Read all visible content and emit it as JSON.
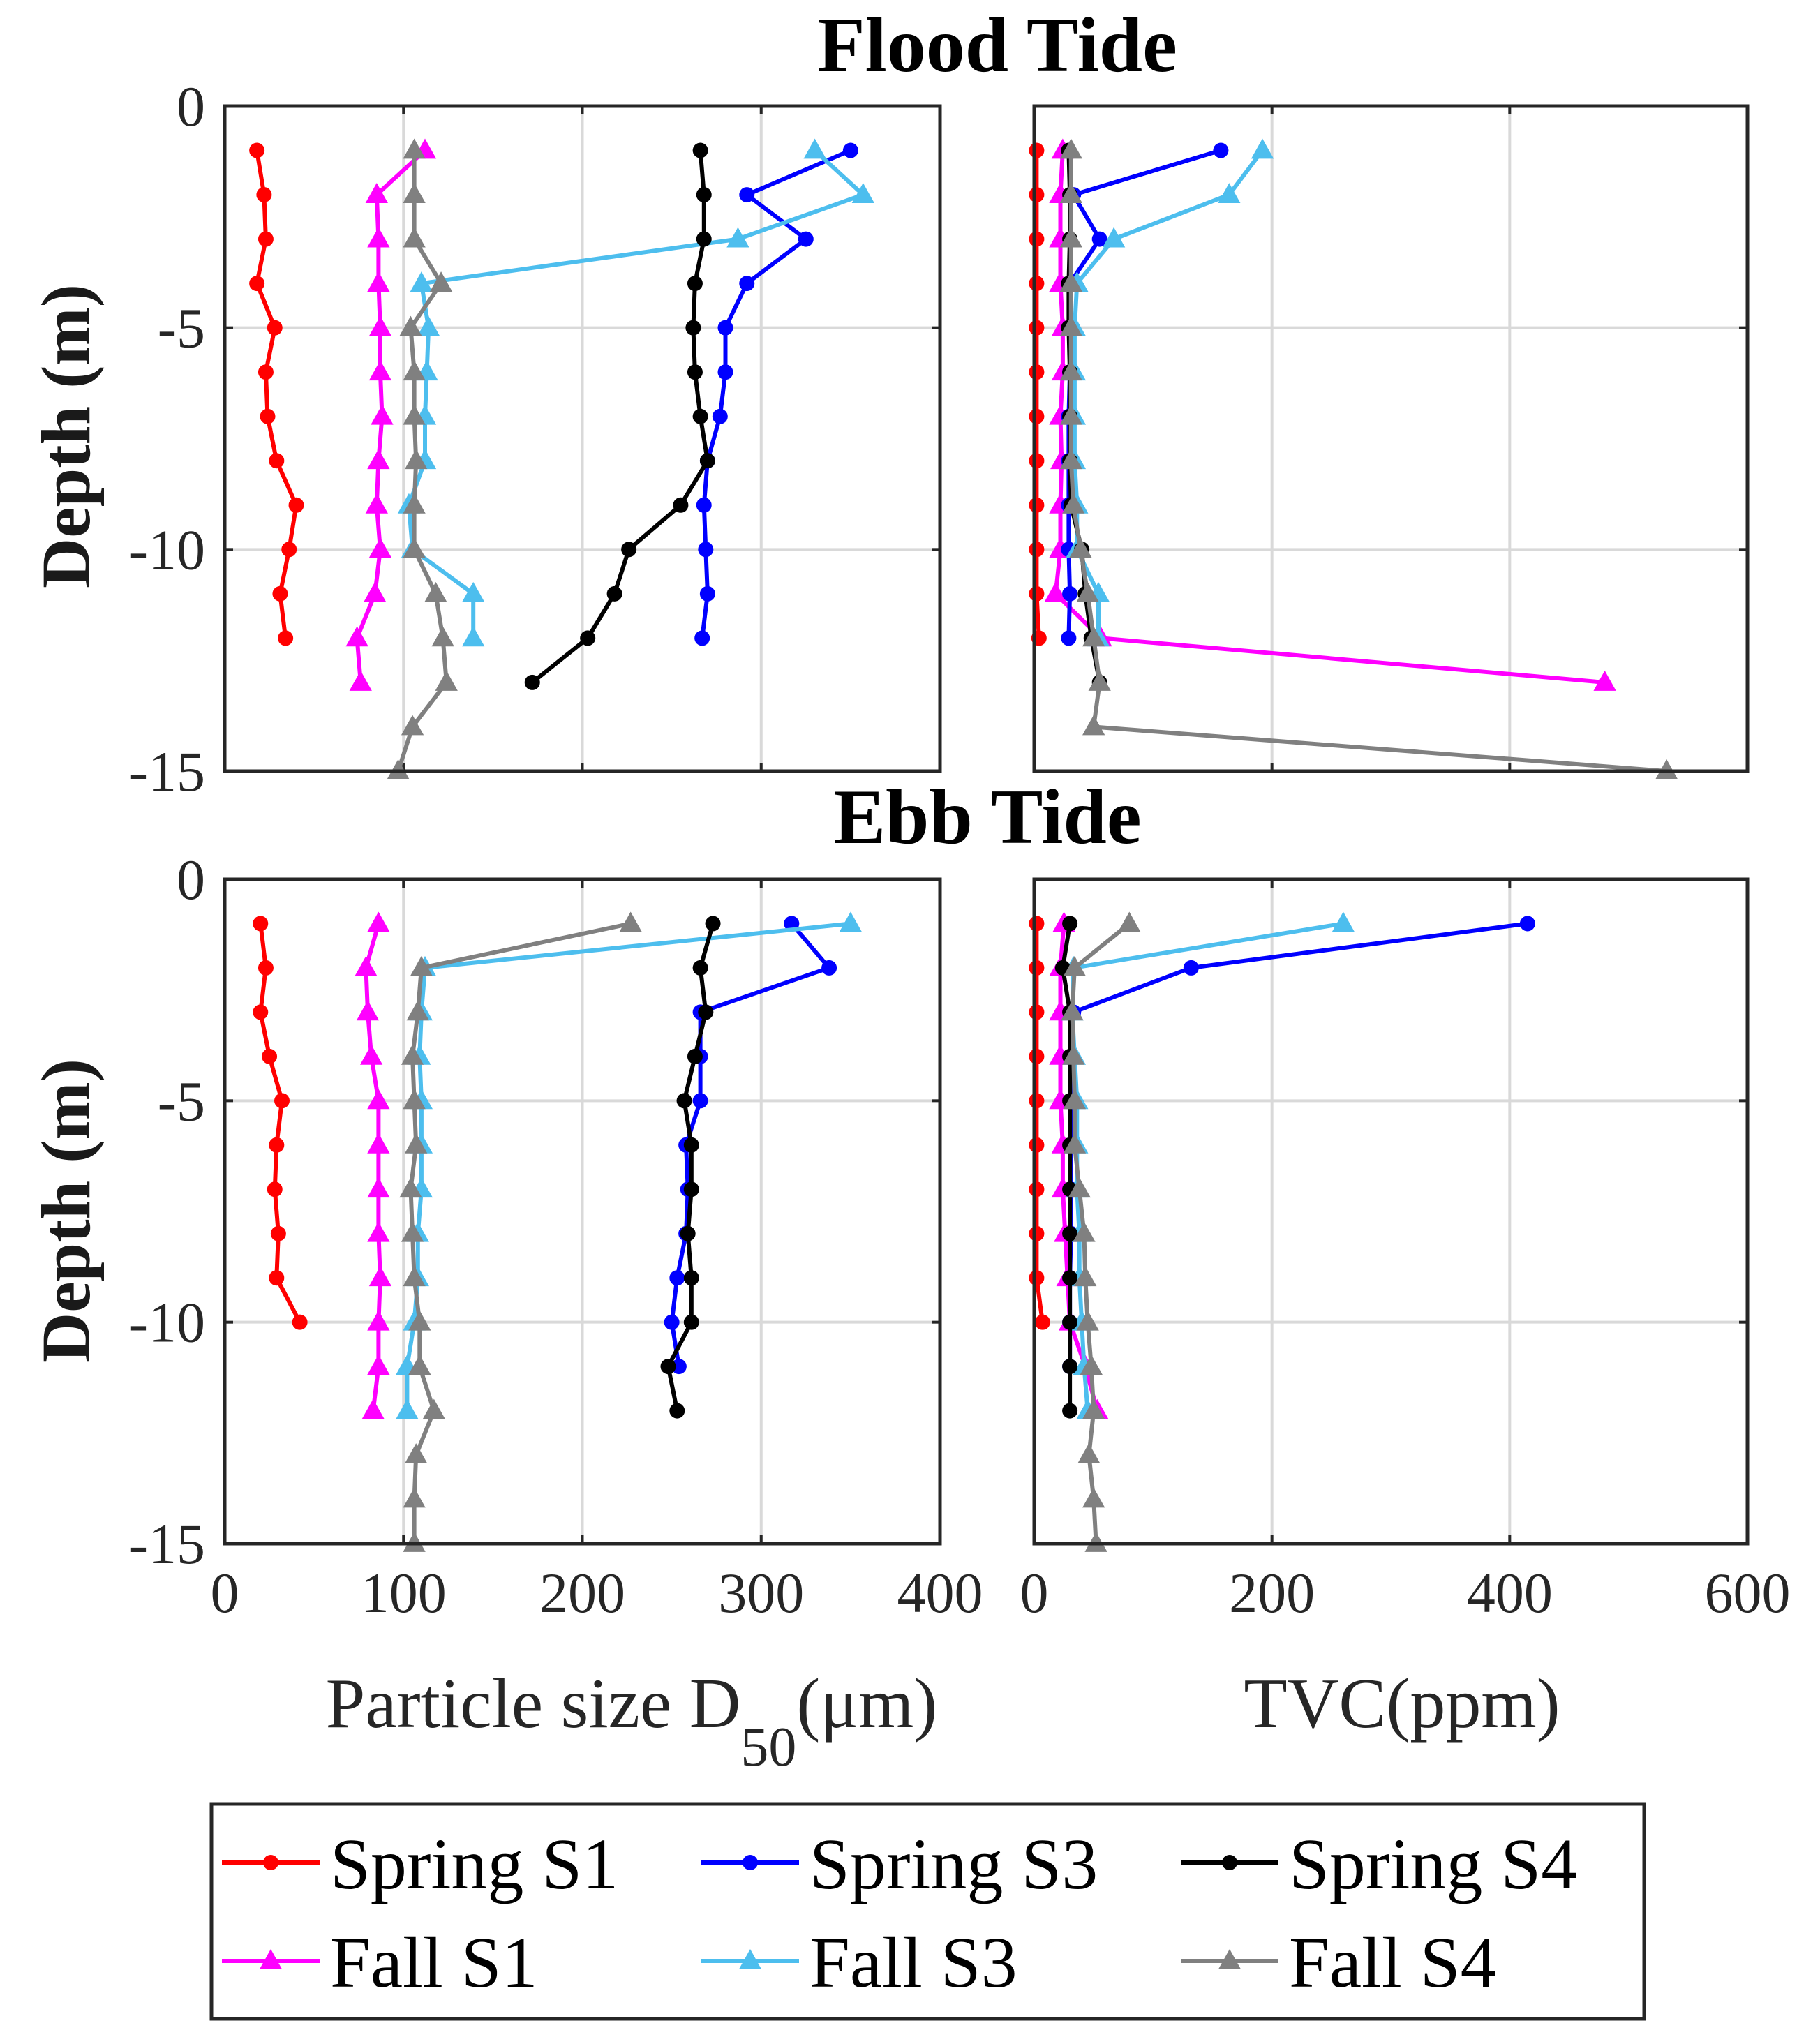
{
  "figure": {
    "titles": {
      "flood": "Flood Tide",
      "ebb": "Ebb Tide"
    },
    "ylabel": "Depth (m)",
    "xlabel_size": {
      "main": "Particle size D",
      "sub": "50",
      "unit": "(μm)"
    },
    "xlabel_tvc": "TVC(ppm)",
    "size_ticks": [
      "0",
      "100",
      "200",
      "300",
      "400"
    ],
    "tvc_ticks": [
      "0",
      "200",
      "400",
      "600"
    ],
    "depth_ticks": [
      "0",
      "-5",
      "-10",
      "-15"
    ]
  },
  "chart_data": [
    {
      "type": "line",
      "id": "flood_size",
      "title": "Flood Tide",
      "xlabel": "Particle size D50(μm)",
      "ylabel": "Depth (m)",
      "xlim": [
        0,
        400
      ],
      "ylim": [
        -15,
        0
      ],
      "grid": true,
      "series": [
        {
          "name": "Spring S1",
          "color": "#ff0000",
          "marker": "circle",
          "x": [
            18,
            22,
            23,
            18,
            28,
            23,
            24,
            29,
            40,
            36,
            31,
            34
          ],
          "y": [
            -1,
            -2,
            -3,
            -4,
            -5,
            -6,
            -7,
            -8,
            -9,
            -10,
            -11,
            -12
          ]
        },
        {
          "name": "Fall S1",
          "color": "#ff00ff",
          "marker": "triangle",
          "x": [
            112,
            85,
            86,
            86,
            87,
            87,
            88,
            86,
            85,
            87,
            84,
            74,
            76
          ],
          "y": [
            -1,
            -2,
            -3,
            -4,
            -5,
            -6,
            -7,
            -8,
            -9,
            -10,
            -11,
            -12,
            -13
          ]
        },
        {
          "name": "Spring S3",
          "color": "#0000ff",
          "marker": "circle",
          "x": [
            350,
            292,
            325,
            292,
            280,
            280,
            277,
            270,
            268,
            269,
            270,
            267
          ],
          "y": [
            -1,
            -2,
            -3,
            -4,
            -5,
            -6,
            -7,
            -8,
            -9,
            -10,
            -11,
            -12
          ]
        },
        {
          "name": "Fall S3",
          "color": "#4dbeee",
          "marker": "triangle",
          "x": [
            330,
            357,
            287,
            110,
            114,
            113,
            112,
            112,
            103,
            105,
            139,
            139
          ],
          "y": [
            -1,
            -2,
            -3,
            -4,
            -5,
            -6,
            -7,
            -8,
            -9,
            -10,
            -11,
            -12
          ]
        },
        {
          "name": "Spring S4",
          "color": "#000000",
          "marker": "circle",
          "x": [
            266,
            268,
            268,
            263,
            262,
            263,
            266,
            270,
            255,
            226,
            218,
            203,
            172
          ],
          "y": [
            -1,
            -2,
            -3,
            -4,
            -5,
            -6,
            -7,
            -8,
            -9,
            -10,
            -11,
            -12,
            -13
          ]
        },
        {
          "name": "Fall S4",
          "color": "#808080",
          "marker": "triangle",
          "x": [
            106,
            106,
            106,
            121,
            104,
            106,
            106,
            107,
            106,
            106,
            118,
            122,
            124,
            105,
            97
          ],
          "y": [
            -1,
            -2,
            -3,
            -4,
            -5,
            -6,
            -7,
            -8,
            -9,
            -10,
            -11,
            -12,
            -13,
            -14,
            -15
          ]
        }
      ]
    },
    {
      "type": "line",
      "id": "flood_tvc",
      "title": "Flood Tide",
      "xlabel": "TVC(ppm)",
      "ylabel": "",
      "xlim": [
        0,
        600
      ],
      "ylim": [
        -15,
        0
      ],
      "grid": true,
      "series": [
        {
          "name": "Spring S1",
          "color": "#ff0000",
          "marker": "circle",
          "x": [
            2,
            2,
            2,
            2,
            2,
            2,
            2,
            2,
            2,
            2,
            2,
            4
          ],
          "y": [
            -1,
            -2,
            -3,
            -4,
            -5,
            -6,
            -7,
            -8,
            -9,
            -10,
            -11,
            -12
          ]
        },
        {
          "name": "Fall S1",
          "color": "#ff00ff",
          "marker": "triangle",
          "x": [
            24,
            22,
            22,
            22,
            24,
            24,
            22,
            23,
            22,
            22,
            18,
            56,
            480
          ],
          "y": [
            -1,
            -2,
            -3,
            -4,
            -5,
            -6,
            -7,
            -8,
            -9,
            -10,
            -11,
            -12,
            -13
          ]
        },
        {
          "name": "Spring S3",
          "color": "#0000ff",
          "marker": "circle",
          "x": [
            157,
            33,
            55,
            30,
            30,
            30,
            29,
            29,
            29,
            29,
            30,
            29
          ],
          "y": [
            -1,
            -2,
            -3,
            -4,
            -5,
            -6,
            -7,
            -8,
            -9,
            -10,
            -11,
            -12
          ]
        },
        {
          "name": "Fall S3",
          "color": "#4dbeee",
          "marker": "triangle",
          "x": [
            192,
            164,
            67,
            36,
            34,
            34,
            34,
            34,
            36,
            36,
            54,
            54
          ],
          "y": [
            -1,
            -2,
            -3,
            -4,
            -5,
            -6,
            -7,
            -8,
            -9,
            -10,
            -11,
            -12
          ]
        },
        {
          "name": "Spring S4",
          "color": "#000000",
          "marker": "circle",
          "x": [
            29,
            30,
            30,
            29,
            29,
            30,
            30,
            30,
            31,
            40,
            43,
            48,
            55
          ],
          "y": [
            -1,
            -2,
            -3,
            -4,
            -5,
            -6,
            -7,
            -8,
            -9,
            -10,
            -11,
            -12,
            -13
          ]
        },
        {
          "name": "Fall S4",
          "color": "#808080",
          "marker": "triangle",
          "x": [
            31,
            31,
            31,
            31,
            31,
            31,
            31,
            31,
            33,
            39,
            45,
            50,
            55,
            50,
            532
          ],
          "y": [
            -1,
            -2,
            -3,
            -4,
            -5,
            -6,
            -7,
            -8,
            -9,
            -10,
            -11,
            -12,
            -13,
            -14,
            -15
          ]
        }
      ]
    },
    {
      "type": "line",
      "id": "ebb_size",
      "title": "Ebb Tide",
      "xlabel": "Particle size D50(μm)",
      "ylabel": "Depth (m)",
      "xlim": [
        0,
        400
      ],
      "ylim": [
        -15,
        0
      ],
      "grid": true,
      "series": [
        {
          "name": "Spring S1",
          "color": "#ff0000",
          "marker": "circle",
          "x": [
            20,
            23,
            20,
            25,
            32,
            29,
            28,
            30,
            29,
            42
          ],
          "y": [
            -1,
            -2,
            -3,
            -4,
            -5,
            -6,
            -7,
            -8,
            -9,
            -10
          ]
        },
        {
          "name": "Fall S1",
          "color": "#ff00ff",
          "marker": "triangle",
          "x": [
            86,
            79,
            80,
            82,
            86,
            86,
            86,
            86,
            87,
            86,
            86,
            83
          ],
          "y": [
            -1,
            -2,
            -3,
            -4,
            -5,
            -6,
            -7,
            -8,
            -9,
            -10,
            -11,
            -12
          ]
        },
        {
          "name": "Spring S3",
          "color": "#0000ff",
          "marker": "circle",
          "x": [
            317,
            338,
            266,
            266,
            266,
            258,
            259,
            258,
            253,
            250,
            254
          ],
          "y": [
            -1,
            -2,
            -3,
            -4,
            -5,
            -6,
            -7,
            -8,
            -9,
            -10,
            -11
          ]
        },
        {
          "name": "Fall S3",
          "color": "#4dbeee",
          "marker": "triangle",
          "x": [
            350,
            112,
            110,
            109,
            110,
            110,
            110,
            108,
            108,
            106,
            102,
            102
          ],
          "y": [
            -1,
            -2,
            -3,
            -4,
            -5,
            -6,
            -7,
            -8,
            -9,
            -10,
            -11,
            -12
          ]
        },
        {
          "name": "Spring S4",
          "color": "#000000",
          "marker": "circle",
          "x": [
            273,
            266,
            269,
            263,
            257,
            261,
            261,
            259,
            261,
            261,
            248,
            253
          ],
          "y": [
            -1,
            -2,
            -3,
            -4,
            -5,
            -6,
            -7,
            -8,
            -9,
            -10,
            -11,
            -12
          ]
        },
        {
          "name": "Fall S4",
          "color": "#808080",
          "marker": "triangle",
          "x": [
            227,
            110,
            108,
            105,
            106,
            107,
            104,
            105,
            106,
            109,
            109,
            117,
            107,
            106,
            106
          ],
          "y": [
            -1,
            -2,
            -3,
            -4,
            -5,
            -6,
            -7,
            -8,
            -9,
            -10,
            -11,
            -12,
            -13,
            -14,
            -15
          ]
        }
      ]
    },
    {
      "type": "line",
      "id": "ebb_tvc",
      "title": "Ebb Tide",
      "xlabel": "TVC(ppm)",
      "ylabel": "",
      "xlim": [
        0,
        600
      ],
      "ylim": [
        -15,
        0
      ],
      "grid": true,
      "series": [
        {
          "name": "Spring S1",
          "color": "#ff0000",
          "marker": "circle",
          "x": [
            2,
            2,
            2,
            2,
            2,
            2,
            2,
            2,
            2,
            7
          ],
          "y": [
            -1,
            -2,
            -3,
            -4,
            -5,
            -6,
            -7,
            -8,
            -9,
            -10
          ]
        },
        {
          "name": "Fall S1",
          "color": "#ff00ff",
          "marker": "triangle",
          "x": [
            25,
            22,
            22,
            22,
            22,
            24,
            24,
            26,
            28,
            30,
            43,
            53
          ],
          "y": [
            -1,
            -2,
            -3,
            -4,
            -5,
            -6,
            -7,
            -8,
            -9,
            -10,
            -11,
            -12
          ]
        },
        {
          "name": "Spring S3",
          "color": "#0000ff",
          "marker": "circle",
          "x": [
            415,
            132,
            33,
            31,
            31,
            31,
            31,
            31,
            30,
            30,
            30
          ],
          "y": [
            -1,
            -2,
            -3,
            -4,
            -5,
            -6,
            -7,
            -8,
            -9,
            -10,
            -11
          ]
        },
        {
          "name": "Fall S3",
          "color": "#4dbeee",
          "marker": "triangle",
          "x": [
            260,
            33,
            32,
            34,
            36,
            36,
            36,
            38,
            38,
            40,
            42,
            45
          ],
          "y": [
            -1,
            -2,
            -3,
            -4,
            -5,
            -6,
            -7,
            -8,
            -9,
            -10,
            -11,
            -12
          ]
        },
        {
          "name": "Spring S4",
          "color": "#000000",
          "marker": "circle",
          "x": [
            30,
            24,
            30,
            30,
            30,
            30,
            30,
            30,
            30,
            30,
            30,
            30
          ],
          "y": [
            -1,
            -2,
            -3,
            -4,
            -5,
            -6,
            -7,
            -8,
            -9,
            -10,
            -11,
            -12
          ]
        },
        {
          "name": "Fall S4",
          "color": "#808080",
          "marker": "triangle",
          "x": [
            80,
            34,
            32,
            33,
            34,
            34,
            38,
            42,
            43,
            45,
            48,
            50,
            46,
            50,
            52
          ],
          "y": [
            -1,
            -2,
            -3,
            -4,
            -5,
            -6,
            -7,
            -8,
            -9,
            -10,
            -11,
            -12,
            -13,
            -14,
            -15
          ]
        }
      ]
    }
  ],
  "legend": {
    "placement": "bottom",
    "entries": [
      {
        "name": "Spring S1",
        "color": "#ff0000",
        "marker": "circle"
      },
      {
        "name": "Spring S3",
        "color": "#0000ff",
        "marker": "circle"
      },
      {
        "name": "Spring S4",
        "color": "#000000",
        "marker": "circle"
      },
      {
        "name": "Fall S1",
        "color": "#ff00ff",
        "marker": "triangle"
      },
      {
        "name": "Fall S3",
        "color": "#4dbeee",
        "marker": "triangle"
      },
      {
        "name": "Fall S4",
        "color": "#808080",
        "marker": "triangle"
      }
    ]
  }
}
